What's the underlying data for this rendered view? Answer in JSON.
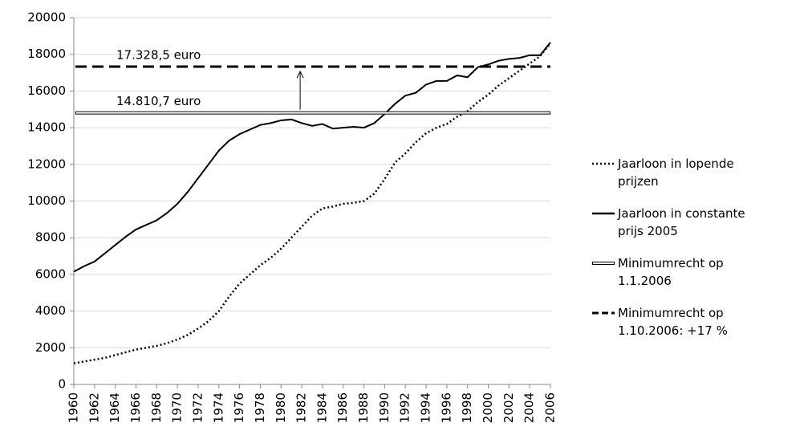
{
  "chart_data": {
    "type": "line",
    "x": [
      1960,
      1961,
      1962,
      1963,
      1964,
      1965,
      1966,
      1967,
      1968,
      1969,
      1970,
      1971,
      1972,
      1973,
      1974,
      1975,
      1976,
      1977,
      1978,
      1979,
      1980,
      1981,
      1982,
      1983,
      1984,
      1985,
      1986,
      1987,
      1988,
      1989,
      1990,
      1991,
      1992,
      1993,
      1994,
      1995,
      1996,
      1997,
      1998,
      1999,
      2000,
      2001,
      2002,
      2003,
      2004,
      2005,
      2006
    ],
    "xlim": [
      1960,
      2006
    ],
    "xticks": [
      1960,
      1962,
      1964,
      1966,
      1968,
      1970,
      1972,
      1974,
      1976,
      1978,
      1980,
      1982,
      1984,
      1986,
      1988,
      1990,
      1992,
      1994,
      1996,
      1998,
      2000,
      2002,
      2004,
      2006
    ],
    "ylim": [
      0,
      20000
    ],
    "yticks": [
      0,
      2000,
      4000,
      6000,
      8000,
      10000,
      12000,
      14000,
      16000,
      18000,
      20000
    ],
    "grid": true,
    "legend": "right",
    "series": [
      {
        "name": "Jaarloon in lopende prijzen",
        "color": "#000000",
        "style": "dotted",
        "values": [
          1150,
          1250,
          1350,
          1450,
          1600,
          1750,
          1900,
          2000,
          2100,
          2250,
          2450,
          2700,
          3050,
          3450,
          4000,
          4800,
          5500,
          6000,
          6500,
          6900,
          7400,
          8000,
          8600,
          9200,
          9600,
          9700,
          9850,
          9900,
          10000,
          10400,
          11200,
          12100,
          12600,
          13200,
          13700,
          14000,
          14200,
          14600,
          14900,
          15400,
          15800,
          16300,
          16700,
          17100,
          17500,
          17900,
          18600
        ]
      },
      {
        "name": "Jaarloon in constante prijs 2005",
        "color": "#000000",
        "style": "solid",
        "values": [
          6150,
          6450,
          6700,
          7150,
          7600,
          8050,
          8450,
          8700,
          8950,
          9350,
          9850,
          10500,
          11250,
          12000,
          12750,
          13300,
          13650,
          13900,
          14150,
          14250,
          14400,
          14450,
          14250,
          14100,
          14200,
          13950,
          14000,
          14050,
          14000,
          14250,
          14750,
          15300,
          15750,
          15900,
          16350,
          16550,
          16550,
          16850,
          16750,
          17300,
          17450,
          17650,
          17750,
          17800,
          17950,
          17950,
          18650
        ]
      },
      {
        "name": "Minimumrecht op 1.1.2006",
        "color": "#000000",
        "style": "double",
        "value": 14810.7,
        "value_label": "14.810,7 euro"
      },
      {
        "name": "Minimumrecht op 1.10.2006:  +17 %",
        "color": "#000000",
        "style": "dashed",
        "value": 17328.5,
        "value_label": "17.328,5 euro"
      }
    ]
  }
}
